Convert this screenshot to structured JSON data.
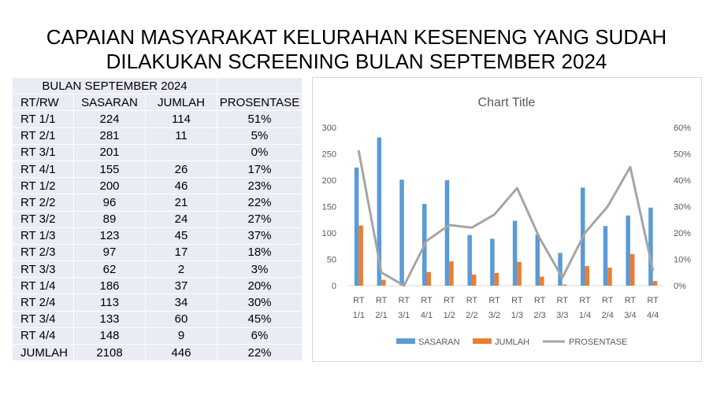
{
  "page_title": {
    "line1": "CAPAIAN MASYARAKAT KELURAHAN KESENENG YANG SUDAH",
    "line2": "DILAKUKAN SCREENING BULAN SEPTEMBER 2024"
  },
  "table": {
    "month_header": "BULAN SEPTEMBER 2024",
    "columns": [
      "RT/RW",
      "SASARAN",
      "JUMLAH",
      "PROSENTASE"
    ],
    "rows": [
      [
        "RT 1/1",
        "224",
        "114",
        "51%"
      ],
      [
        "RT 2/1",
        "281",
        "11",
        "5%"
      ],
      [
        "RT 3/1",
        "201",
        "",
        "0%"
      ],
      [
        "RT 4/1",
        "155",
        "26",
        "17%"
      ],
      [
        "RT 1/2",
        "200",
        "46",
        "23%"
      ],
      [
        "RT 2/2",
        "96",
        "21",
        "22%"
      ],
      [
        "RT 3/2",
        "89",
        "24",
        "27%"
      ],
      [
        "RT 1/3",
        "123",
        "45",
        "37%"
      ],
      [
        "RT 2/3",
        "97",
        "17",
        "18%"
      ],
      [
        "RT 3/3",
        "62",
        "2",
        "3%"
      ],
      [
        "RT 1/4",
        "186",
        "37",
        "20%"
      ],
      [
        "RT 2/4",
        "113",
        "34",
        "30%"
      ],
      [
        "RT 3/4",
        "133",
        "60",
        "45%"
      ],
      [
        "RT 4/4",
        "148",
        "9",
        "6%"
      ]
    ],
    "total": [
      "JUMLAH",
      "2108",
      "446",
      "22%"
    ]
  },
  "chart_data": {
    "type": "bar",
    "title": "Chart Title",
    "categories": [
      [
        "RT",
        "1/1"
      ],
      [
        "RT",
        "2/1"
      ],
      [
        "RT",
        "3/1"
      ],
      [
        "RT",
        "4/1"
      ],
      [
        "RT",
        "1/2"
      ],
      [
        "RT",
        "2/2"
      ],
      [
        "RT",
        "3/2"
      ],
      [
        "RT",
        "1/3"
      ],
      [
        "RT",
        "2/3"
      ],
      [
        "RT",
        "3/3"
      ],
      [
        "RT",
        "1/4"
      ],
      [
        "RT",
        "2/4"
      ],
      [
        "RT",
        "3/4"
      ],
      [
        "RT",
        "4/4"
      ]
    ],
    "series": [
      {
        "name": "SASARAN",
        "type": "bar",
        "axis": "left",
        "color": "#5b9bd5",
        "values": [
          224,
          281,
          201,
          155,
          200,
          96,
          89,
          123,
          97,
          62,
          186,
          113,
          133,
          148
        ]
      },
      {
        "name": "JUMLAH",
        "type": "bar",
        "axis": "left",
        "color": "#ed7d31",
        "values": [
          114,
          11,
          0,
          26,
          46,
          21,
          24,
          45,
          17,
          2,
          37,
          34,
          60,
          9
        ]
      },
      {
        "name": "PROSENTASE",
        "type": "line",
        "axis": "right",
        "color": "#a5a5a5",
        "values": [
          51,
          5,
          0,
          17,
          23,
          22,
          27,
          37,
          18,
          3,
          20,
          30,
          45,
          6
        ]
      }
    ],
    "y_left": {
      "min": 0,
      "max": 300,
      "ticks": [
        "0",
        "50",
        "100",
        "150",
        "200",
        "250",
        "300"
      ]
    },
    "y_right": {
      "min": 0,
      "max": 60,
      "ticks": [
        "0%",
        "10%",
        "20%",
        "30%",
        "40%",
        "50%",
        "60%"
      ]
    },
    "grid": false,
    "legend_position": "bottom"
  }
}
